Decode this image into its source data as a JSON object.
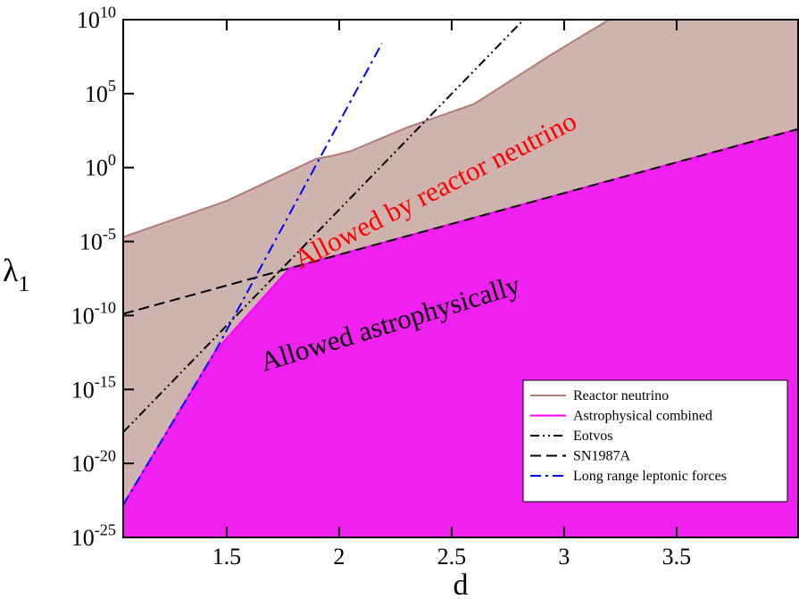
{
  "chart_data": {
    "type": "line",
    "xlabel": "d",
    "ylabel": "λ_1",
    "log_y": true,
    "xlim": [
      1.04,
      4.04
    ],
    "ylim": [
      1e-25,
      10000000000.0
    ],
    "xticks": [
      1.5,
      2,
      2.5,
      3,
      3.5
    ],
    "yticks": [
      {
        "value": 1e-25,
        "label": "10^-25"
      },
      {
        "value": 1e-20,
        "label": "10^-20"
      },
      {
        "value": 1e-15,
        "label": "10^-15"
      },
      {
        "value": 1e-10,
        "label": "10^-10"
      },
      {
        "value": 1e-05,
        "label": "10^-5"
      },
      {
        "value": 1,
        "label": "10^0"
      },
      {
        "value": 100000,
        "label": "10^5"
      },
      {
        "value": 10000000000.0,
        "label": "10^10"
      }
    ],
    "series": [
      {
        "name": "Reactor neutrino",
        "color": "#b07c78",
        "fill": "#cfb3ae",
        "dash": "solid",
        "x": [
          1.04,
          1.5,
          1.9,
          1.97,
          2.05,
          2.3,
          2.6,
          2.95,
          3.2,
          4.04
        ],
        "values": [
          2e-05,
          0.0056,
          4,
          6.3,
          12.6,
          500,
          20000,
          50000000.0,
          10000000000.0,
          10000000000.0
        ]
      },
      {
        "name": "Astrophysical combined",
        "color": "#ff00ff",
        "fill": "#f020f0",
        "dash": "solid",
        "x": [
          1.04,
          1.45,
          1.78,
          4.04
        ],
        "values": [
          1.6e-23,
          4e-13,
          1.6e-07,
          400
        ]
      },
      {
        "name": "Eotvos",
        "color": "#000000",
        "dash": "dashdotdot",
        "x": [
          1.04,
          2.82
        ],
        "values": [
          1.3e-18,
          10000000000.0
        ]
      },
      {
        "name": "SN1987A",
        "color": "#000000",
        "dash": "dash",
        "x": [
          1.04,
          4.04
        ],
        "values": [
          1.3e-10,
          400
        ]
      },
      {
        "name": "Long range leptonic forces",
        "color": "#0000ff",
        "dash": "dashdot",
        "x": [
          1.04,
          1.45,
          2.19
        ],
        "values": [
          1.6e-23,
          4e-13,
          250000000.0
        ]
      }
    ],
    "annotations": [
      {
        "text": "Allowed by reactor neutrino",
        "color": "#ff0000"
      },
      {
        "text": "Allowed astrophysically",
        "color": "#000000"
      }
    ],
    "legend": "lower right"
  }
}
